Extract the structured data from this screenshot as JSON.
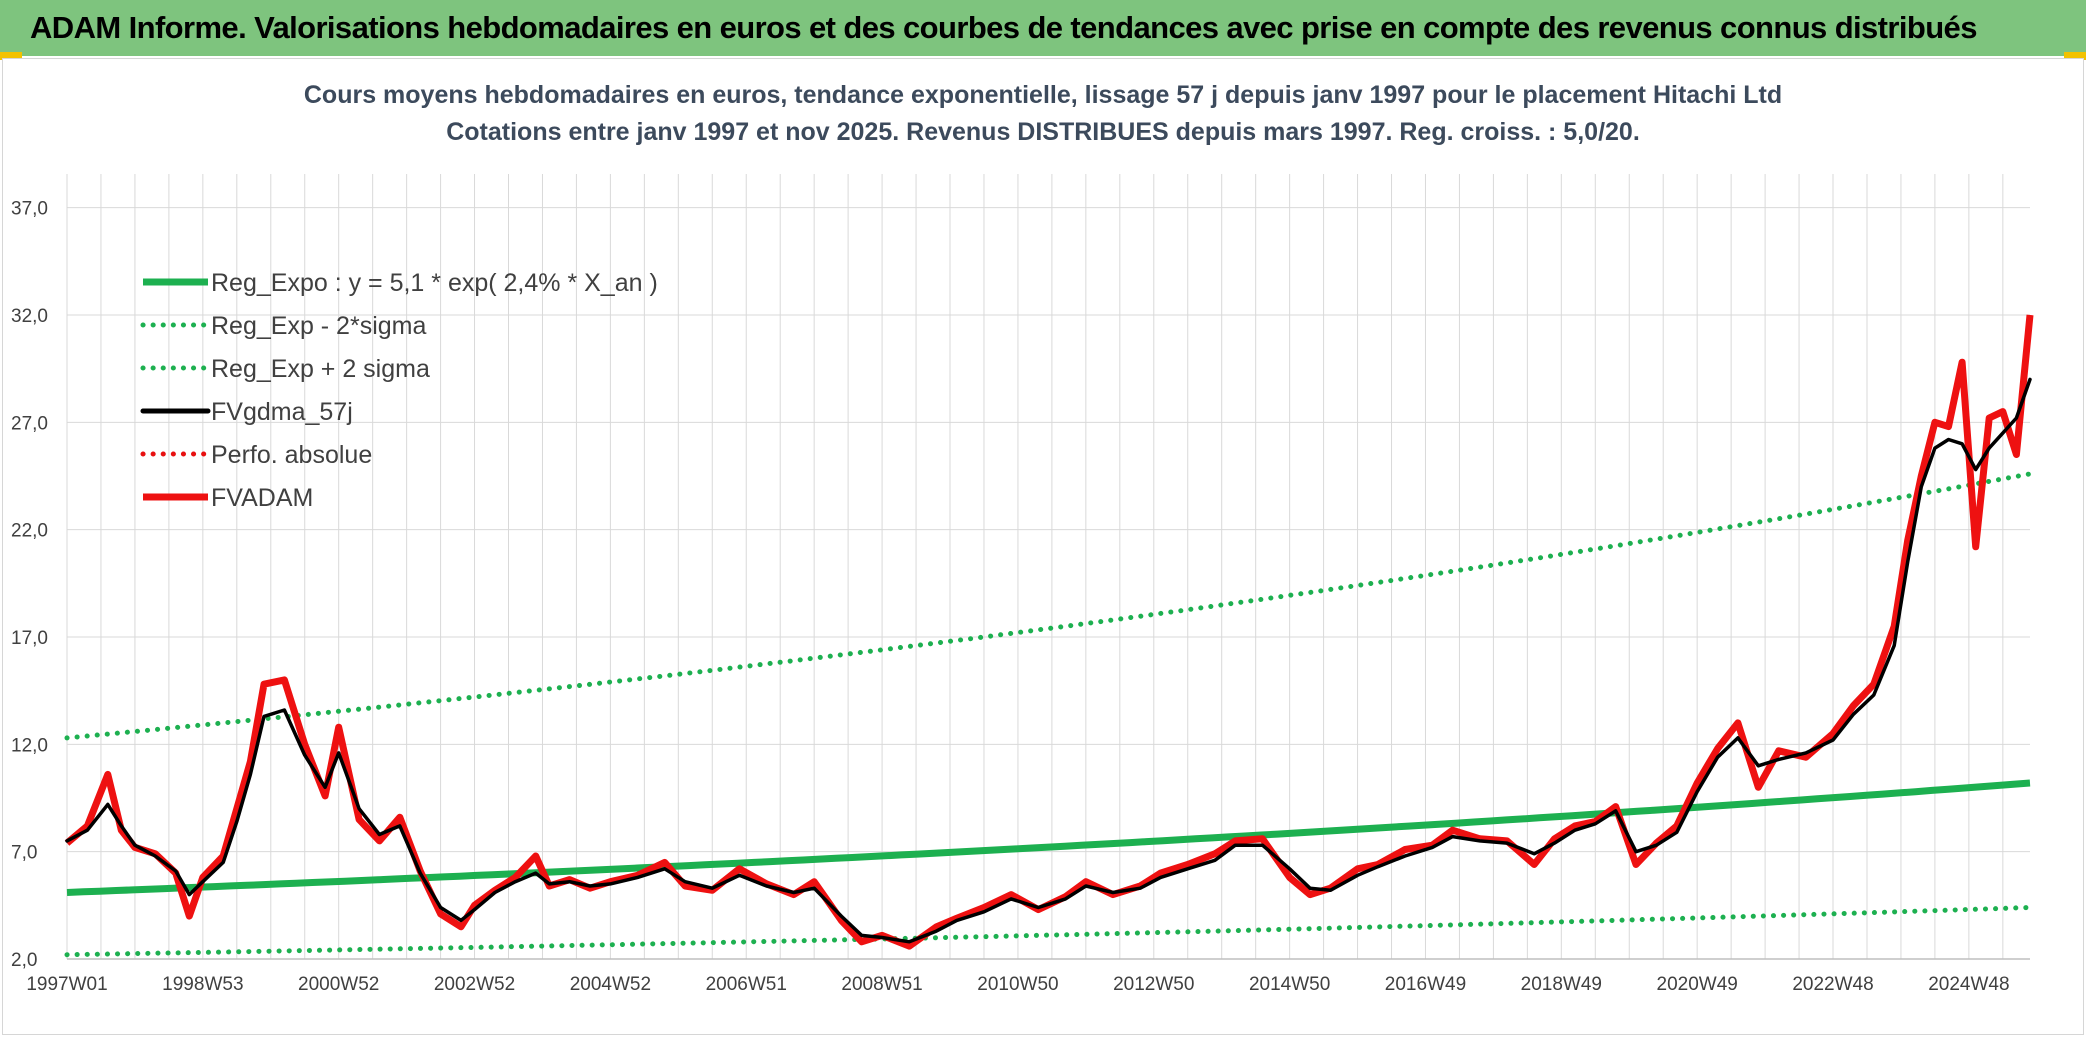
{
  "header": {
    "title": "ADAM Informe. Valorisations hebdomadaires en euros et des courbes de tendances avec prise en compte des revenus connus distribués"
  },
  "colors": {
    "banner": "#7ec47e",
    "reg_expo": "#1db050",
    "sigma": "#1db050",
    "fvgdma": "#000000",
    "perfo": "#e81010",
    "fvadam": "#ee1111",
    "grid": "#d9d9d9",
    "title_text": "#3c4a5c"
  },
  "chart_data": {
    "type": "line",
    "title": "Cours moyens hebdomadaires en euros, tendance exponentielle, lissage 57 j depuis janv 1997 pour le placement Hitachi Ltd",
    "subtitle": "Cotations entre janv 1997 et nov 2025. Revenus DISTRIBUES depuis mars 1997. Reg. croiss. : 5,0/20.",
    "xlabel": "",
    "ylabel": "",
    "x_range": [
      1997.0,
      2025.9
    ],
    "ylim": [
      2.0,
      39.5
    ],
    "y_ticks": [
      2.0,
      7.0,
      12.0,
      17.0,
      22.0,
      27.0,
      32.0,
      37.0
    ],
    "y_tick_labels": [
      "2,0",
      "7,0",
      "12,0",
      "17,0",
      "22,0",
      "27,0",
      "32,0",
      "37,0"
    ],
    "x_tick_positions": [
      1997.0,
      1999.0,
      2001.0,
      2003.0,
      2005.0,
      2007.0,
      2009.0,
      2011.0,
      2013.0,
      2015.0,
      2017.0,
      2019.0,
      2021.0,
      2023.0,
      2025.0
    ],
    "x_tick_labels": [
      "1997W01",
      "1998W53",
      "2000W52",
      "2002W52",
      "2004W52",
      "2006W51",
      "2008W51",
      "2010W50",
      "2012W50",
      "2014W50",
      "2016W49",
      "2018W49",
      "2020W49",
      "2022W48",
      "2024W48"
    ],
    "legend_position": "top-left",
    "series": [
      {
        "name": "Reg_Expo : y = 5,1 * exp( 2,4% *  X_an )",
        "style": "solid-thick",
        "color": "#1db050",
        "x": [
          1997.0,
          2025.9
        ],
        "y": [
          5.1,
          10.2
        ]
      },
      {
        "name": "Reg_Exp - 2*sigma",
        "style": "dotted",
        "color": "#1db050",
        "x": [
          1997.0,
          2025.9
        ],
        "y": [
          2.2,
          4.4
        ]
      },
      {
        "name": "Reg_Exp + 2 sigma",
        "style": "dotted",
        "color": "#1db050",
        "x": [
          1997.0,
          2025.9
        ],
        "y": [
          12.3,
          24.6
        ]
      },
      {
        "name": "FVgdma_57j",
        "style": "solid",
        "color": "#000000",
        "x": [
          1997.0,
          1997.3,
          1997.6,
          1997.8,
          1998.0,
          1998.3,
          1998.6,
          1998.8,
          1999.0,
          1999.3,
          1999.5,
          1999.7,
          1999.9,
          2000.2,
          2000.5,
          2000.8,
          2001.0,
          2001.3,
          2001.6,
          2001.9,
          2002.2,
          2002.5,
          2002.8,
          2003.0,
          2003.3,
          2003.6,
          2003.9,
          2004.1,
          2004.4,
          2004.7,
          2005.0,
          2005.4,
          2005.8,
          2006.1,
          2006.5,
          2006.9,
          2007.3,
          2007.7,
          2008.0,
          2008.4,
          2008.7,
          2009.0,
          2009.4,
          2009.8,
          2010.1,
          2010.5,
          2010.9,
          2011.3,
          2011.7,
          2012.0,
          2012.4,
          2012.8,
          2013.1,
          2013.5,
          2013.9,
          2014.2,
          2014.6,
          2015.0,
          2015.3,
          2015.6,
          2016.0,
          2016.3,
          2016.7,
          2017.1,
          2017.4,
          2017.8,
          2018.2,
          2018.6,
          2018.9,
          2019.2,
          2019.5,
          2019.8,
          2020.1,
          2020.4,
          2020.7,
          2021.0,
          2021.3,
          2021.6,
          2021.9,
          2022.2,
          2022.6,
          2023.0,
          2023.3,
          2023.6,
          2023.9,
          2024.1,
          2024.3,
          2024.5,
          2024.7,
          2024.9,
          2025.1,
          2025.3,
          2025.5,
          2025.7,
          2025.9
        ],
        "y": [
          7.5,
          8.0,
          9.2,
          8.2,
          7.3,
          6.8,
          6.1,
          5.0,
          5.6,
          6.5,
          8.4,
          10.6,
          13.3,
          13.6,
          11.5,
          10.0,
          11.6,
          9.0,
          7.8,
          8.2,
          6.0,
          4.4,
          3.8,
          4.3,
          5.1,
          5.6,
          6.0,
          5.5,
          5.6,
          5.4,
          5.5,
          5.8,
          6.2,
          5.6,
          5.3,
          5.9,
          5.4,
          5.1,
          5.3,
          4.0,
          3.1,
          3.0,
          2.8,
          3.3,
          3.8,
          4.2,
          4.8,
          4.4,
          4.8,
          5.4,
          5.1,
          5.3,
          5.8,
          6.2,
          6.6,
          7.3,
          7.3,
          6.2,
          5.3,
          5.2,
          5.9,
          6.3,
          6.8,
          7.2,
          7.7,
          7.5,
          7.4,
          6.9,
          7.4,
          8.0,
          8.3,
          8.9,
          7.0,
          7.3,
          7.9,
          9.8,
          11.4,
          12.3,
          11.0,
          11.3,
          11.6,
          12.2,
          13.4,
          14.3,
          16.6,
          20.5,
          24.0,
          25.8,
          26.2,
          26.0,
          24.8,
          25.8,
          26.5,
          27.2,
          29.0
        ]
      },
      {
        "name": "Perfo. absolue",
        "style": "dotted",
        "color": "#e81010",
        "x": [],
        "y": []
      },
      {
        "name": "FVADAM",
        "style": "solid-thick",
        "color": "#ee1111",
        "x": [
          1997.0,
          1997.3,
          1997.6,
          1997.8,
          1998.0,
          1998.3,
          1998.6,
          1998.8,
          1999.0,
          1999.3,
          1999.5,
          1999.7,
          1999.9,
          2000.2,
          2000.5,
          2000.8,
          2001.0,
          2001.3,
          2001.6,
          2001.9,
          2002.2,
          2002.5,
          2002.8,
          2003.0,
          2003.3,
          2003.6,
          2003.9,
          2004.1,
          2004.4,
          2004.7,
          2005.0,
          2005.4,
          2005.8,
          2006.1,
          2006.5,
          2006.9,
          2007.3,
          2007.7,
          2008.0,
          2008.4,
          2008.7,
          2009.0,
          2009.4,
          2009.8,
          2010.1,
          2010.5,
          2010.9,
          2011.3,
          2011.7,
          2012.0,
          2012.4,
          2012.8,
          2013.1,
          2013.5,
          2013.9,
          2014.2,
          2014.6,
          2015.0,
          2015.3,
          2015.6,
          2016.0,
          2016.3,
          2016.7,
          2017.1,
          2017.4,
          2017.8,
          2018.2,
          2018.6,
          2018.9,
          2019.2,
          2019.5,
          2019.8,
          2020.1,
          2020.4,
          2020.7,
          2021.0,
          2021.3,
          2021.6,
          2021.9,
          2022.2,
          2022.6,
          2023.0,
          2023.3,
          2023.6,
          2023.9,
          2024.1,
          2024.3,
          2024.5,
          2024.7,
          2024.9,
          2025.1,
          2025.3,
          2025.5,
          2025.7,
          2025.9
        ],
        "y": [
          7.4,
          8.2,
          10.6,
          8.0,
          7.2,
          6.9,
          6.0,
          4.0,
          5.8,
          6.8,
          9.0,
          11.2,
          14.8,
          15.0,
          12.0,
          9.6,
          12.8,
          8.5,
          7.5,
          8.6,
          6.1,
          4.1,
          3.5,
          4.5,
          5.2,
          5.8,
          6.8,
          5.4,
          5.7,
          5.3,
          5.6,
          5.9,
          6.5,
          5.4,
          5.2,
          6.2,
          5.5,
          5.0,
          5.6,
          3.8,
          2.8,
          3.1,
          2.6,
          3.5,
          3.9,
          4.4,
          5.0,
          4.3,
          4.9,
          5.6,
          5.0,
          5.4,
          6.0,
          6.4,
          6.9,
          7.5,
          7.6,
          5.8,
          5.0,
          5.3,
          6.2,
          6.4,
          7.1,
          7.3,
          8.0,
          7.6,
          7.5,
          6.4,
          7.6,
          8.2,
          8.4,
          9.1,
          6.4,
          7.4,
          8.2,
          10.2,
          11.8,
          13.0,
          10.0,
          11.7,
          11.4,
          12.5,
          13.8,
          14.8,
          17.5,
          21.5,
          24.5,
          27.0,
          26.8,
          29.8,
          21.2,
          27.2,
          27.5,
          25.5,
          32.0
        ]
      }
    ]
  }
}
